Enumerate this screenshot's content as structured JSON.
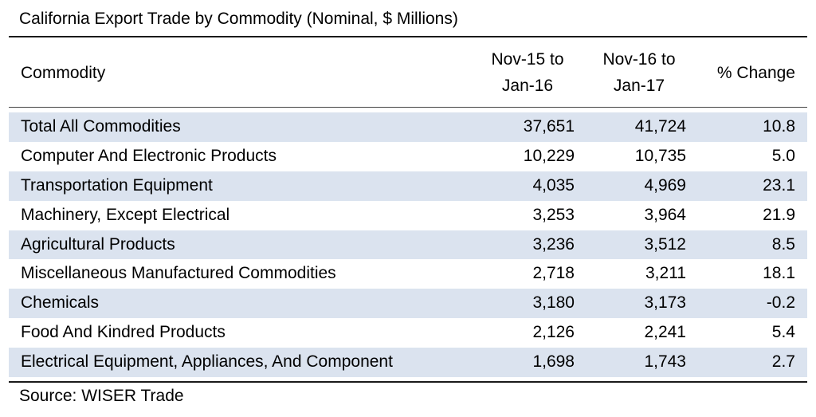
{
  "chart_data": {
    "type": "table",
    "title": "California Export Trade by Commodity (Nominal, $ Millions)",
    "columns": [
      "Commodity",
      "Nov-15 to\nJan-16",
      "Nov-16 to\nJan-17",
      "% Change"
    ],
    "rows": [
      [
        "Total All Commodities",
        "37,651",
        "41,724",
        "10.8"
      ],
      [
        "Computer And Electronic Products",
        "10,229",
        "10,735",
        "5.0"
      ],
      [
        "Transportation Equipment",
        "4,035",
        "4,969",
        "23.1"
      ],
      [
        "Machinery, Except Electrical",
        "3,253",
        "3,964",
        "21.9"
      ],
      [
        "Agricultural Products",
        "3,236",
        "3,512",
        "8.5"
      ],
      [
        "Miscellaneous Manufactured Commodities",
        "2,718",
        "3,211",
        "18.1"
      ],
      [
        "Chemicals",
        "3,180",
        "3,173",
        "-0.2"
      ],
      [
        "Food And Kindred Products",
        "2,126",
        "2,241",
        "5.4"
      ],
      [
        "Electrical Equipment, Appliances, And Component",
        "1,698",
        "1,743",
        "2.7"
      ]
    ],
    "source": "Source: WISER Trade",
    "row_shading_color": "#dbe3ef"
  }
}
